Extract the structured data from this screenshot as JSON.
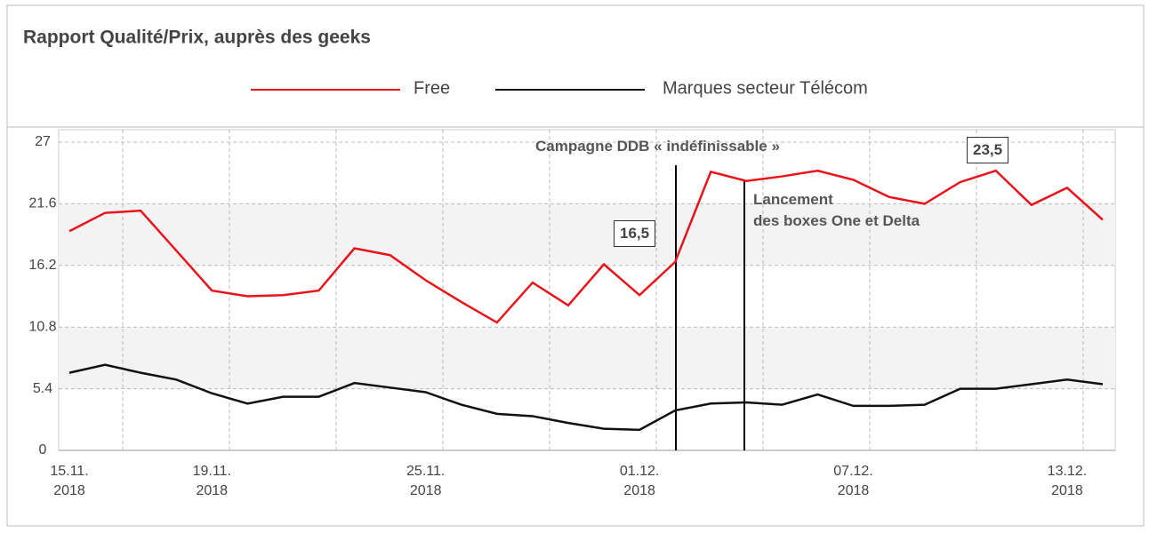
{
  "chart_data": {
    "type": "line",
    "title": "Rapport Qualité/Prix, auprès des geeks",
    "categories": [
      "15.11.\n2018",
      null,
      null,
      null,
      "19.11.\n2018",
      null,
      null,
      null,
      null,
      null,
      "25.11.\n2018",
      null,
      null,
      null,
      null,
      null,
      "01.12.\n2018",
      null,
      null,
      null,
      null,
      null,
      "07.12.\n2018",
      null,
      null,
      null,
      null,
      null,
      "13.12.\n2018",
      null
    ],
    "series": [
      {
        "name": "Free",
        "color": "#e8141c",
        "values": [
          19.2,
          20.8,
          21.0,
          17.5,
          14.0,
          13.5,
          13.6,
          14.0,
          17.7,
          17.1,
          14.9,
          13.0,
          11.2,
          14.7,
          12.7,
          16.3,
          13.6,
          16.5,
          24.4,
          23.6,
          24.0,
          24.5,
          23.7,
          22.2,
          21.6,
          23.5,
          24.5,
          21.5,
          23.0,
          20.2
        ]
      },
      {
        "name": "Marques secteur Télécom",
        "color": "#111111",
        "values": [
          6.8,
          7.5,
          6.8,
          6.2,
          5.0,
          4.1,
          4.7,
          4.7,
          5.9,
          5.5,
          5.1,
          4.0,
          3.2,
          3.0,
          2.4,
          1.9,
          1.8,
          3.5,
          4.1,
          4.2,
          4.0,
          4.9,
          3.9,
          3.9,
          4.0,
          5.4,
          5.4,
          5.8,
          6.2,
          5.8
        ]
      }
    ],
    "ylim": [
      0,
      27
    ],
    "yticks": [
      0,
      5.4,
      10.8,
      16.2,
      21.6,
      27
    ],
    "grid": true,
    "annotations": [
      "Campagne DDB « indéfinissable »",
      "Lancement\ndes boxes One et Delta",
      "16,5",
      "23,5"
    ]
  }
}
